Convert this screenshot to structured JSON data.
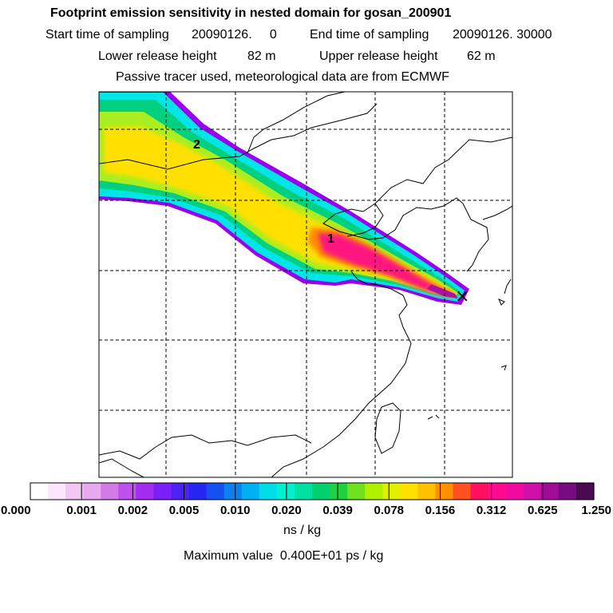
{
  "header": {
    "title": "Footprint emission sensitivity in nested domain for gosan_200901",
    "line2_start_label": "Start time of sampling",
    "line2_start_value": "20090126.     0",
    "line2_end_label": "End time of sampling",
    "line2_end_value": "20090126. 30000",
    "line3_lower_label": "Lower release height",
    "line3_lower_value": "82 m",
    "line3_upper_label": "Upper release height",
    "line3_upper_value": "62 m",
    "line4": "Passive tracer used, meteorological data are from ECMWF"
  },
  "map": {
    "markers": [
      "1",
      "2"
    ],
    "receptor_symbol": "×"
  },
  "colorbar": {
    "tick_labels": [
      "0.000",
      "0.001",
      "0.002",
      "0.005",
      "0.010",
      "0.020",
      "0.039",
      "0.078",
      "0.156",
      "0.312",
      "0.625",
      "1.250"
    ],
    "unit": "ns / kg",
    "max_value_text": "Maximum value  0.400E+01 ps / kg",
    "colors": [
      "#ffffff",
      "#fbe6fb",
      "#f2c8f3",
      "#e8a8ee",
      "#d27be7",
      "#c050ea",
      "#a22cf0",
      "#7a1ff5",
      "#4d22f5",
      "#2626f2",
      "#1650f0",
      "#0c80ee",
      "#00b0f0",
      "#00dde8",
      "#00f0d0",
      "#00e0a0",
      "#00d070",
      "#20d040",
      "#70e020",
      "#b0f000",
      "#e0f000",
      "#ffe000",
      "#ffc000",
      "#ff9000",
      "#ff5020",
      "#ff1060",
      "#ff0a8c",
      "#f00aa0",
      "#d010a8",
      "#a00c96",
      "#780a80",
      "#4a0a50"
    ]
  }
}
